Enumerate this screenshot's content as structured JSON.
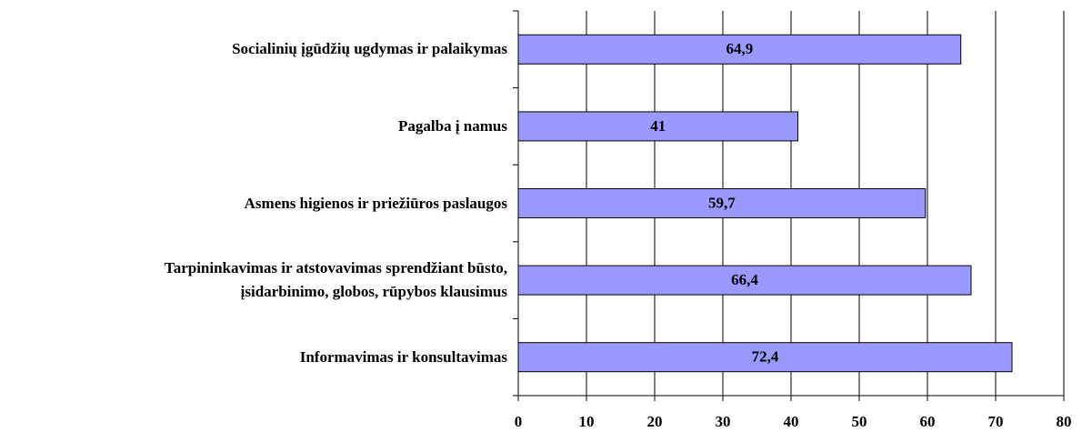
{
  "chart_data": {
    "type": "bar",
    "orientation": "horizontal",
    "categories": [
      "Socialinių įgūdžių ugdymas ir palaikymas",
      "Pagalba į namus",
      "Asmens higienos ir priežiūros paslaugos",
      "Tarpininkavimas ir atstovavimas sprendžiant būsto,\nįsidarbinimo, globos, rūpybos klausimus",
      "Informavimas ir konsultavimas"
    ],
    "values": [
      64.9,
      41,
      59.7,
      66.4,
      72.4
    ],
    "value_labels": [
      "64,9",
      "41",
      "59,7",
      "66,4",
      "72,4"
    ],
    "color": "#9999ff",
    "xlim": [
      0,
      80
    ],
    "xticks": [
      0,
      10,
      20,
      30,
      40,
      50,
      60,
      70,
      80
    ],
    "grid": true
  }
}
